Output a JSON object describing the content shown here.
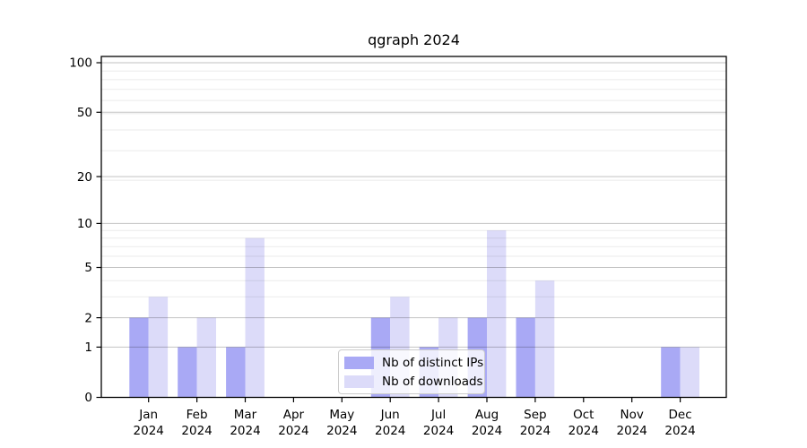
{
  "title": "qgraph 2024",
  "chart_data": {
    "type": "bar",
    "title": "qgraph 2024",
    "categories": [
      "Jan",
      "Feb",
      "Mar",
      "Apr",
      "May",
      "Jun",
      "Jul",
      "Aug",
      "Sep",
      "Oct",
      "Nov",
      "Dec"
    ],
    "x_sublabel": "2024",
    "series": [
      {
        "name": "Nb of distinct IPs",
        "color": "#a9a9f5",
        "values": [
          2,
          1,
          1,
          0,
          0,
          2,
          1,
          2,
          2,
          0,
          0,
          1
        ]
      },
      {
        "name": "Nb of downloads",
        "color": "#dcdbf9",
        "values": [
          3,
          2,
          8,
          0,
          0,
          3,
          2,
          9,
          4,
          0,
          0,
          1
        ]
      }
    ],
    "y_ticks": [
      0,
      1,
      2,
      5,
      10,
      20,
      50,
      100
    ],
    "y_minor_ticks": [
      3,
      4,
      6,
      7,
      8,
      9,
      19,
      29,
      39,
      49,
      59,
      69,
      79,
      89
    ],
    "y_scale": "log10(1+v)",
    "ylim": [
      0,
      110
    ],
    "grid": true,
    "legend_position": "lower center",
    "colors": {
      "major_grid": "rgba(0,0,0,0.24)",
      "minor_grid": "rgba(0,0,0,0.08)",
      "spine": "#000000"
    }
  }
}
